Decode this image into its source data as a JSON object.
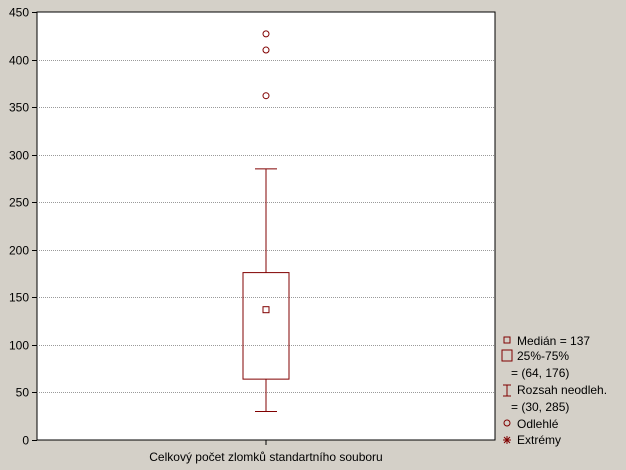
{
  "chart_data": {
    "type": "boxplot",
    "xlabel": "Celkový počet zlomků standartního souboru",
    "ylabel": "",
    "ylim": [
      0,
      450
    ],
    "yticks": [
      0,
      50,
      100,
      150,
      200,
      250,
      300,
      350,
      400,
      450
    ],
    "ytick_labels": [
      "0",
      "50",
      "100",
      "150",
      "200",
      "250",
      "300",
      "350",
      "400",
      "450"
    ],
    "grid": true,
    "legend_position": "bottom-right",
    "box": {
      "median": 137,
      "q1": 64,
      "q3": 176,
      "whisker_low": 30,
      "whisker_high": 285,
      "outliers": [
        362,
        410,
        427
      ]
    },
    "legend": {
      "median": "Medián = 137",
      "box_line1": "25%-75%",
      "box_line2": "= (64, 176)",
      "whisker_line1": "Rozsah neodleh.",
      "whisker_line2": "= (30, 285)",
      "outliers": "Odlehlé",
      "extremes": "Extrémy"
    },
    "colors": {
      "series": "#800000",
      "plot_background": "#ffffff",
      "figure_background": "#d4d0c8",
      "grid": "#9a9a9a"
    }
  }
}
